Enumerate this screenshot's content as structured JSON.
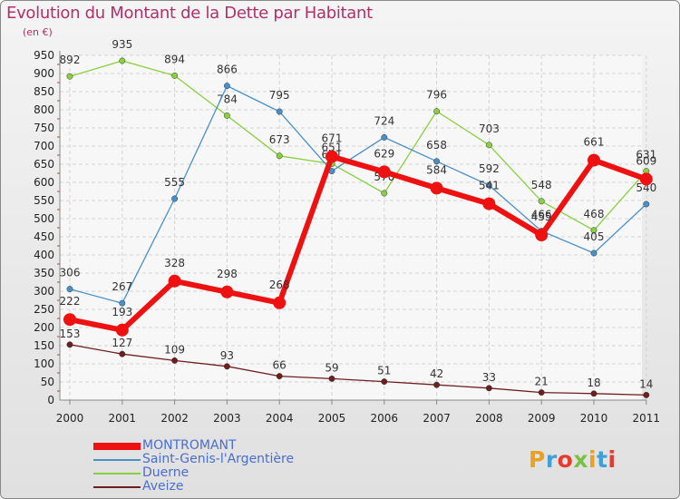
{
  "title": "Evolution du Montant de la Dette par Habitant",
  "unit_label": "(en €)",
  "logo_text": "Proxiti",
  "logo_colors": [
    "#e9a121",
    "#3fa0db",
    "#e53a2e",
    "#79c142",
    "#e9a121",
    "#3fa0db",
    "#e53a2e"
  ],
  "chart_data": {
    "type": "line",
    "title": "Evolution du Montant de la Dette par Habitant",
    "ylabel": "(en €)",
    "ylim": [
      0,
      950
    ],
    "y_ticks": [
      0,
      50,
      100,
      150,
      200,
      250,
      300,
      350,
      400,
      450,
      500,
      550,
      600,
      650,
      700,
      750,
      800,
      850,
      900,
      950
    ],
    "x": [
      "2000",
      "2001",
      "2002",
      "2003",
      "2004",
      "2005",
      "2006",
      "2007",
      "2008",
      "2009",
      "2010",
      "2011"
    ],
    "grid": true,
    "legend_position": "bottom-left",
    "series": [
      {
        "name": "MONTROMANT",
        "color": "#ee1111",
        "values": [
          222,
          193,
          328,
          298,
          268,
          671,
          629,
          584,
          541,
          455,
          661,
          609
        ]
      },
      {
        "name": "Saint-Genis-l'Argentière",
        "color": "#4a90c8",
        "values": [
          306,
          267,
          555,
          866,
          795,
          631,
          724,
          658,
          592,
          466,
          405,
          540
        ]
      },
      {
        "name": "Duerne",
        "color": "#88d040",
        "values": [
          892,
          935,
          894,
          784,
          673,
          651,
          570,
          796,
          703,
          548,
          468,
          631
        ]
      },
      {
        "name": "Aveize",
        "color": "#6e1e1e",
        "values": [
          153,
          127,
          109,
          93,
          66,
          59,
          51,
          42,
          33,
          21,
          18,
          14
        ]
      }
    ]
  }
}
